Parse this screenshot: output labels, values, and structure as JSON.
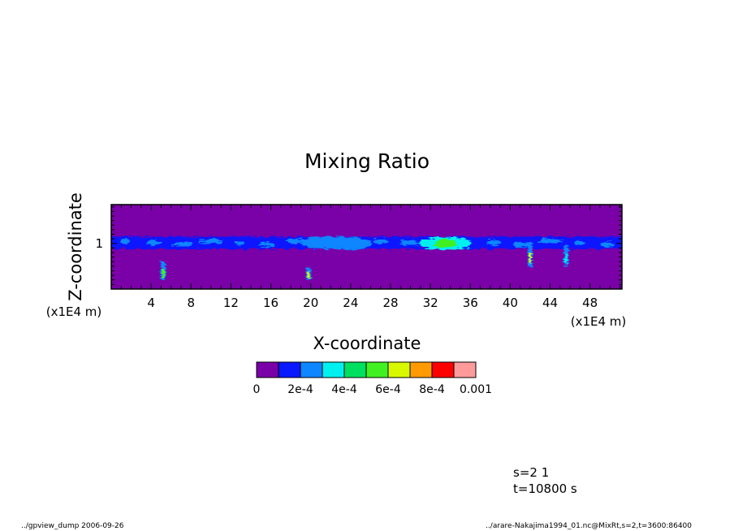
{
  "chart_data": {
    "type": "heatmap",
    "title": "Mixing Ratio",
    "xlabel": "X-coordinate",
    "ylabel": "Z-coordinate",
    "x_unit": "(x1E4 m)",
    "y_unit": "(x1E4 m)",
    "xlim": [
      0,
      51.2
    ],
    "ylim": [
      0,
      1.85
    ],
    "x_ticks": [
      4,
      8,
      12,
      16,
      20,
      24,
      28,
      32,
      36,
      40,
      44,
      48
    ],
    "y_ticks": [
      1
    ],
    "colorbar": {
      "levels": [
        0,
        0.0001,
        0.0002,
        0.0003,
        0.0004,
        0.0005,
        0.0006,
        0.0007,
        0.0008,
        0.0009,
        0.001
      ],
      "tick_labels": [
        "0",
        "2e-4",
        "4e-4",
        "6e-4",
        "8e-4",
        "0.001"
      ],
      "colors": [
        "#7a00a8",
        "#0a18ff",
        "#0d86ff",
        "#00f0f0",
        "#00e060",
        "#40f020",
        "#d8f800",
        "#ff9a00",
        "#ff0000",
        "#ff9a9a"
      ]
    },
    "features": [
      {
        "kind": "layer",
        "x_range": [
          0,
          51.2
        ],
        "z_range": [
          0.88,
          1.15
        ],
        "level": 1
      },
      {
        "kind": "blob",
        "x": 21.5,
        "z": 1.02,
        "level": 2
      },
      {
        "kind": "blob",
        "x": 23.5,
        "z": 1.0,
        "level": 2
      },
      {
        "kind": "blob",
        "x": 33.5,
        "z": 1.0,
        "level": 5
      },
      {
        "kind": "column",
        "x": 5.2,
        "z_range": [
          0.2,
          0.6
        ],
        "level": 5
      },
      {
        "kind": "column",
        "x": 19.8,
        "z_range": [
          0.2,
          0.45
        ],
        "level": 6
      },
      {
        "kind": "column",
        "x": 42.0,
        "z_range": [
          0.5,
          0.95
        ],
        "level": 6
      },
      {
        "kind": "column",
        "x": 45.6,
        "z_range": [
          0.5,
          0.95
        ],
        "level": 3
      }
    ]
  },
  "footer": {
    "info_line1": "s=2 1",
    "info_line2": "t=10800 s",
    "left_caption": "../gpview_dump  2006-09-26",
    "right_caption": "../arare-Nakajima1994_01.nc@MixRt,s=2,t=3600:86400"
  }
}
